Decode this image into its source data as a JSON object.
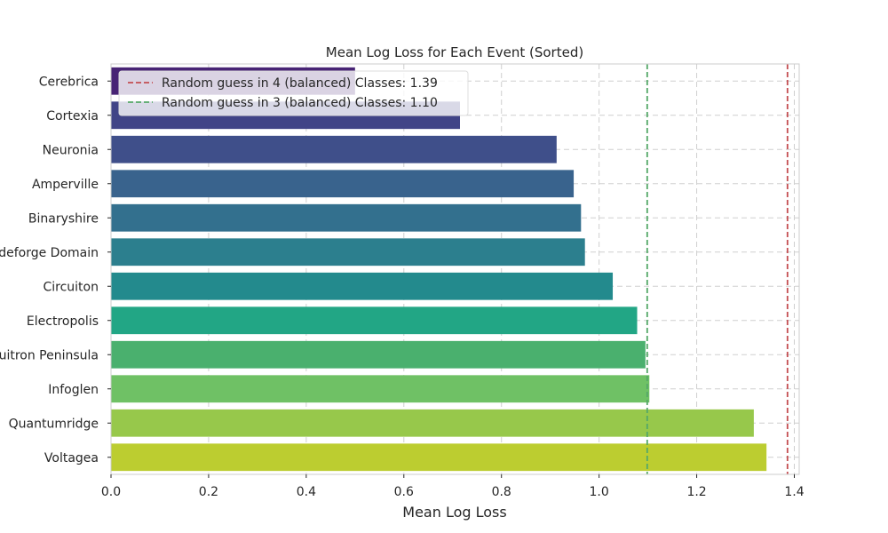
{
  "chart_data": {
    "type": "bar",
    "orientation": "horizontal",
    "title": "Mean Log Loss for Each Event (Sorted)",
    "xlabel": "Mean Log Loss",
    "ylabel": "",
    "xlim": [
      0,
      1.41
    ],
    "x_ticks": [
      "0.0",
      "0.2",
      "0.4",
      "0.6",
      "0.8",
      "1.0",
      "1.2",
      "1.4"
    ],
    "grid": true,
    "legend_position": "top-left",
    "categories": [
      "Cerebrica",
      "Cortexia",
      "Neuronia",
      "Amperville",
      "Binaryshire",
      "Codeforge Domain",
      "Circuiton",
      "Electropolis",
      "Quitron Peninsula",
      "Infoglen",
      "Quantumridge",
      "Voltagea"
    ],
    "values": [
      0.5,
      0.715,
      0.913,
      0.948,
      0.963,
      0.971,
      1.028,
      1.078,
      1.095,
      1.103,
      1.317,
      1.343
    ],
    "colors": [
      "#482475",
      "#414487",
      "#3f4f8a",
      "#39638d",
      "#33708e",
      "#2c7f8e",
      "#238a8d",
      "#22a685",
      "#4ab06e",
      "#6fc165",
      "#97c84b",
      "#bccd30"
    ],
    "reference_lines": [
      {
        "label": "Random guess in 4 (balanced) Classes: 1.39",
        "value": 1.386,
        "color": "#c44e52",
        "style": "dashed"
      },
      {
        "label": "Random guess in 3 (balanced) Classes: 1.10",
        "value": 1.0986,
        "color": "#55a868",
        "style": "dashed"
      }
    ]
  }
}
